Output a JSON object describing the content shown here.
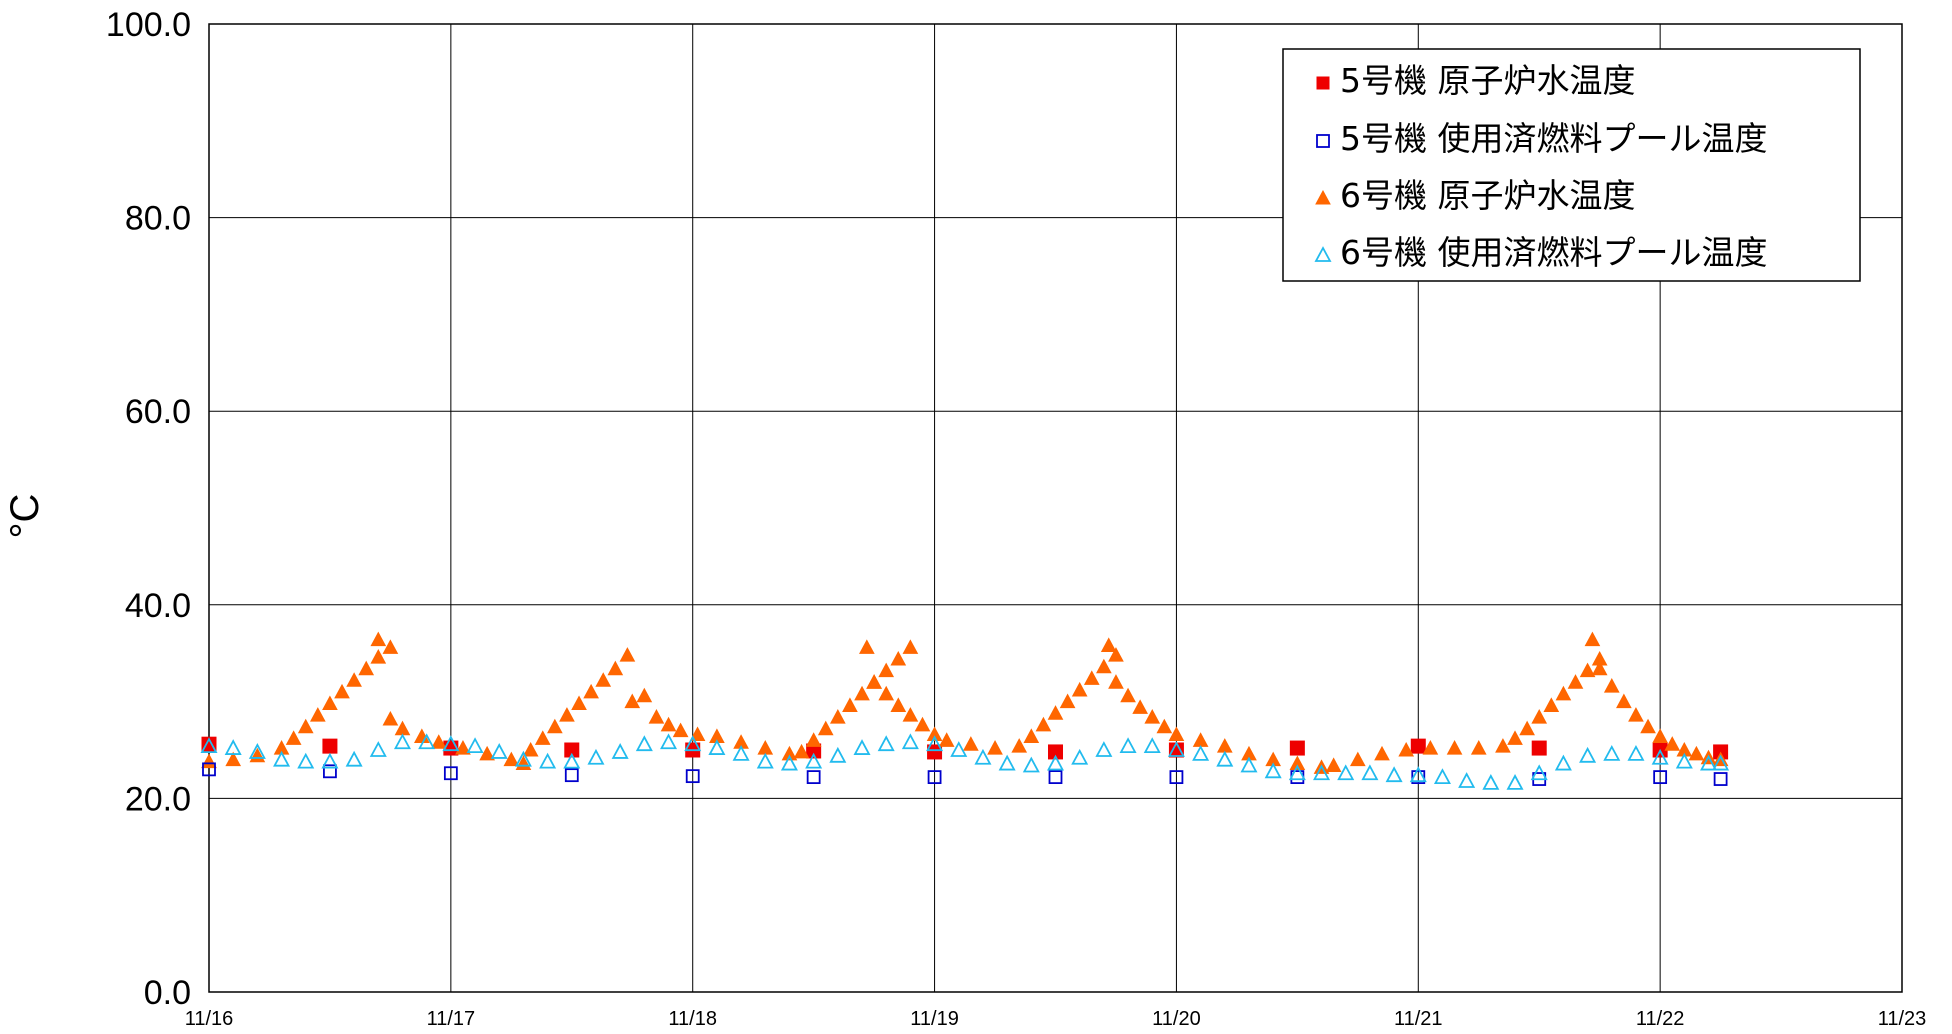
{
  "chart_data": {
    "type": "scatter",
    "title": "",
    "xlabel": "",
    "ylabel": "°C",
    "ylim": [
      0,
      100
    ],
    "yticks": [
      "0.0",
      "20.0",
      "40.0",
      "60.0",
      "80.0",
      "100.0"
    ],
    "xlim_days": [
      0,
      7
    ],
    "xticks": [
      "11/16",
      "11/17",
      "11/18",
      "11/19",
      "11/20",
      "11/21",
      "11/22",
      "11/23"
    ],
    "grid": true,
    "legend_position": "top-right",
    "series": [
      {
        "name": "5号機 原子炉水温度",
        "marker": "square-filled",
        "color": "#ee0000",
        "points": [
          [
            0.0,
            25.6
          ],
          [
            0.5,
            25.4
          ],
          [
            1.0,
            25.2
          ],
          [
            1.5,
            25.0
          ],
          [
            2.0,
            25.0
          ],
          [
            2.5,
            24.9
          ],
          [
            3.0,
            24.8
          ],
          [
            3.5,
            24.8
          ],
          [
            4.0,
            25.0
          ],
          [
            4.5,
            25.2
          ],
          [
            5.0,
            25.4
          ],
          [
            5.5,
            25.2
          ],
          [
            6.0,
            25.0
          ],
          [
            6.25,
            24.8
          ]
        ]
      },
      {
        "name": "5号機 使用済燃料プール温度",
        "marker": "square-open",
        "color": "#0000cc",
        "points": [
          [
            0.0,
            23.0
          ],
          [
            0.5,
            22.8
          ],
          [
            1.0,
            22.6
          ],
          [
            1.5,
            22.4
          ],
          [
            2.0,
            22.3
          ],
          [
            2.5,
            22.2
          ],
          [
            3.0,
            22.2
          ],
          [
            3.5,
            22.2
          ],
          [
            4.0,
            22.2
          ],
          [
            4.5,
            22.2
          ],
          [
            5.0,
            22.2
          ],
          [
            5.5,
            22.0
          ],
          [
            6.0,
            22.2
          ],
          [
            6.25,
            22.0
          ]
        ]
      },
      {
        "name": "6号機 原子炉水温度",
        "marker": "triangle-filled",
        "color": "#ff6600",
        "points": [
          [
            0.0,
            23.8
          ],
          [
            0.1,
            24.0
          ],
          [
            0.2,
            24.4
          ],
          [
            0.3,
            25.2
          ],
          [
            0.35,
            26.2
          ],
          [
            0.4,
            27.4
          ],
          [
            0.45,
            28.6
          ],
          [
            0.5,
            29.8
          ],
          [
            0.55,
            31.0
          ],
          [
            0.6,
            32.2
          ],
          [
            0.65,
            33.4
          ],
          [
            0.7,
            34.6
          ],
          [
            0.75,
            35.6
          ],
          [
            0.7,
            36.4
          ],
          [
            0.75,
            28.2
          ],
          [
            0.8,
            27.2
          ],
          [
            0.88,
            26.4
          ],
          [
            0.95,
            25.8
          ],
          [
            1.05,
            25.2
          ],
          [
            1.15,
            24.6
          ],
          [
            1.25,
            24.0
          ],
          [
            1.3,
            23.6
          ],
          [
            1.33,
            25.0
          ],
          [
            1.38,
            26.2
          ],
          [
            1.43,
            27.4
          ],
          [
            1.48,
            28.6
          ],
          [
            1.53,
            29.8
          ],
          [
            1.58,
            31.0
          ],
          [
            1.63,
            32.2
          ],
          [
            1.68,
            33.4
          ],
          [
            1.73,
            34.8
          ],
          [
            1.75,
            30.0
          ],
          [
            1.8,
            30.6
          ],
          [
            1.85,
            28.4
          ],
          [
            1.9,
            27.6
          ],
          [
            1.95,
            27.0
          ],
          [
            2.02,
            26.6
          ],
          [
            2.1,
            26.4
          ],
          [
            2.2,
            25.8
          ],
          [
            2.3,
            25.2
          ],
          [
            2.4,
            24.6
          ],
          [
            2.45,
            24.8
          ],
          [
            2.5,
            26.0
          ],
          [
            2.55,
            27.2
          ],
          [
            2.6,
            28.4
          ],
          [
            2.65,
            29.6
          ],
          [
            2.7,
            30.8
          ],
          [
            2.75,
            32.0
          ],
          [
            2.8,
            33.2
          ],
          [
            2.85,
            34.4
          ],
          [
            2.9,
            35.6
          ],
          [
            2.72,
            35.6
          ],
          [
            2.75,
            32.0
          ],
          [
            2.8,
            30.8
          ],
          [
            2.85,
            29.6
          ],
          [
            2.9,
            28.6
          ],
          [
            2.95,
            27.6
          ],
          [
            3.0,
            26.6
          ],
          [
            3.05,
            26.0
          ],
          [
            3.15,
            25.6
          ],
          [
            3.25,
            25.2
          ],
          [
            3.35,
            25.4
          ],
          [
            3.4,
            26.4
          ],
          [
            3.45,
            27.6
          ],
          [
            3.5,
            28.8
          ],
          [
            3.55,
            30.0
          ],
          [
            3.6,
            31.2
          ],
          [
            3.65,
            32.4
          ],
          [
            3.7,
            33.6
          ],
          [
            3.75,
            34.8
          ],
          [
            3.72,
            35.8
          ],
          [
            3.75,
            32.0
          ],
          [
            3.8,
            30.6
          ],
          [
            3.85,
            29.4
          ],
          [
            3.9,
            28.4
          ],
          [
            3.95,
            27.4
          ],
          [
            4.0,
            26.6
          ],
          [
            4.1,
            26.0
          ],
          [
            4.2,
            25.4
          ],
          [
            4.3,
            24.6
          ],
          [
            4.4,
            24.0
          ],
          [
            4.5,
            23.6
          ],
          [
            4.6,
            23.2
          ],
          [
            4.65,
            23.4
          ],
          [
            4.75,
            24.0
          ],
          [
            4.85,
            24.6
          ],
          [
            4.95,
            25.0
          ],
          [
            5.05,
            25.2
          ],
          [
            5.15,
            25.2
          ],
          [
            5.25,
            25.2
          ],
          [
            5.35,
            25.4
          ],
          [
            5.4,
            26.2
          ],
          [
            5.45,
            27.2
          ],
          [
            5.5,
            28.4
          ],
          [
            5.55,
            29.6
          ],
          [
            5.6,
            30.8
          ],
          [
            5.65,
            32.0
          ],
          [
            5.7,
            33.2
          ],
          [
            5.75,
            34.4
          ],
          [
            5.72,
            36.4
          ],
          [
            5.75,
            33.4
          ],
          [
            5.8,
            31.6
          ],
          [
            5.85,
            30.0
          ],
          [
            5.9,
            28.6
          ],
          [
            5.95,
            27.4
          ],
          [
            6.0,
            26.4
          ],
          [
            6.05,
            25.6
          ],
          [
            6.1,
            25.0
          ],
          [
            6.15,
            24.6
          ],
          [
            6.2,
            24.2
          ],
          [
            6.25,
            24.0
          ]
        ]
      },
      {
        "name": "6号機 使用済燃料プール温度",
        "marker": "triangle-open",
        "color": "#22bbee",
        "points": [
          [
            0.0,
            25.4
          ],
          [
            0.1,
            25.2
          ],
          [
            0.2,
            24.8
          ],
          [
            0.3,
            24.0
          ],
          [
            0.4,
            23.8
          ],
          [
            0.5,
            23.8
          ],
          [
            0.6,
            24.0
          ],
          [
            0.7,
            25.0
          ],
          [
            0.8,
            25.8
          ],
          [
            0.9,
            25.8
          ],
          [
            1.0,
            25.6
          ],
          [
            1.1,
            25.4
          ],
          [
            1.2,
            24.8
          ],
          [
            1.3,
            24.0
          ],
          [
            1.4,
            23.8
          ],
          [
            1.5,
            23.8
          ],
          [
            1.6,
            24.2
          ],
          [
            1.7,
            24.8
          ],
          [
            1.8,
            25.6
          ],
          [
            1.9,
            25.8
          ],
          [
            2.0,
            25.6
          ],
          [
            2.1,
            25.2
          ],
          [
            2.2,
            24.6
          ],
          [
            2.3,
            23.8
          ],
          [
            2.4,
            23.6
          ],
          [
            2.5,
            23.8
          ],
          [
            2.6,
            24.4
          ],
          [
            2.7,
            25.2
          ],
          [
            2.8,
            25.6
          ],
          [
            2.9,
            25.8
          ],
          [
            3.0,
            25.6
          ],
          [
            3.1,
            25.0
          ],
          [
            3.2,
            24.2
          ],
          [
            3.3,
            23.6
          ],
          [
            3.4,
            23.4
          ],
          [
            3.5,
            23.6
          ],
          [
            3.6,
            24.2
          ],
          [
            3.7,
            25.0
          ],
          [
            3.8,
            25.4
          ],
          [
            3.9,
            25.4
          ],
          [
            4.0,
            25.0
          ],
          [
            4.1,
            24.6
          ],
          [
            4.2,
            24.0
          ],
          [
            4.3,
            23.4
          ],
          [
            4.4,
            22.8
          ],
          [
            4.5,
            22.6
          ],
          [
            4.6,
            22.6
          ],
          [
            4.7,
            22.6
          ],
          [
            4.8,
            22.6
          ],
          [
            4.9,
            22.4
          ],
          [
            5.0,
            22.4
          ],
          [
            5.1,
            22.2
          ],
          [
            5.2,
            21.8
          ],
          [
            5.3,
            21.6
          ],
          [
            5.4,
            21.6
          ],
          [
            5.5,
            22.6
          ],
          [
            5.6,
            23.6
          ],
          [
            5.7,
            24.4
          ],
          [
            5.8,
            24.6
          ],
          [
            5.9,
            24.6
          ],
          [
            6.0,
            24.2
          ],
          [
            6.1,
            23.8
          ],
          [
            6.2,
            23.6
          ],
          [
            6.25,
            23.6
          ]
        ]
      }
    ]
  }
}
